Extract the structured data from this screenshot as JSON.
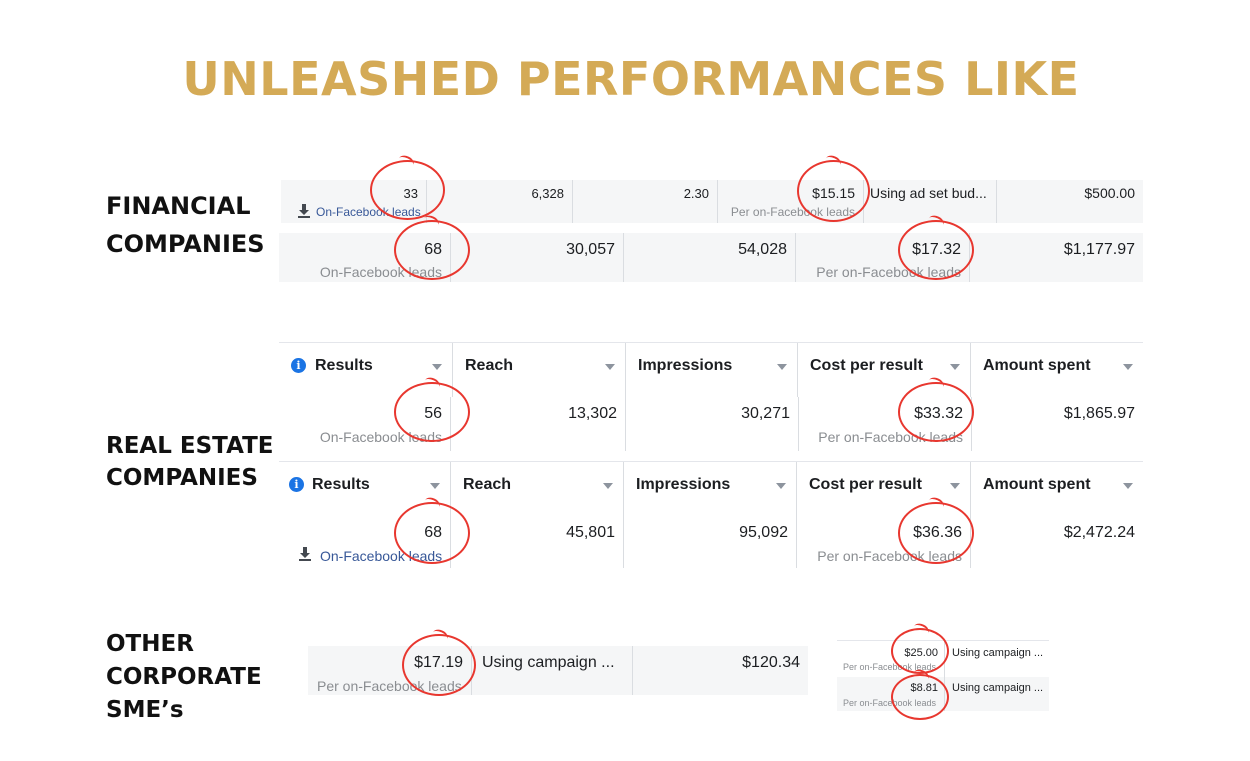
{
  "title": "UNLEASHED PERFORMANCES LIKE",
  "sections": {
    "financial": [
      "FINANCIAL",
      "COMPANIES"
    ],
    "real_estate": [
      "REAL ESTATE",
      "COMPANIES"
    ],
    "other": [
      "OTHER",
      "CORPORATE",
      "SME’s"
    ]
  },
  "leads_label": "On-Facebook leads",
  "per_leads_label": "Per on-Facebook leads",
  "fin_row1": {
    "results": "33",
    "reach": "6,328",
    "frequency": "2.30",
    "cost": "$15.15",
    "budget": "Using ad set bud...",
    "spent": "$500.00"
  },
  "fin_row2": {
    "results": "68",
    "reach": "30,057",
    "impressions": "54,028",
    "cost": "$17.32",
    "spent": "$1,177.97"
  },
  "headers": {
    "results": "Results",
    "reach": "Reach",
    "impressions": "Impressions",
    "cost": "Cost per result",
    "spent": "Amount spent"
  },
  "re_row1": {
    "results": "56",
    "reach": "13,302",
    "impressions": "30,271",
    "cost": "$33.32",
    "spent": "$1,865.97"
  },
  "re_row2": {
    "results": "68",
    "reach": "45,801",
    "impressions": "95,092",
    "cost": "$36.36",
    "spent": "$2,472.24"
  },
  "other_row": {
    "cost": "$17.19",
    "budget": "Using campaign ...",
    "spent": "$120.34"
  },
  "small_rows": [
    {
      "cost": "$25.00",
      "budget": "Using campaign ..."
    },
    {
      "cost": "$8.81",
      "budget": "Using campaign ..."
    }
  ],
  "colors": {
    "title": "#d4aa56",
    "highlight": "#e8372f",
    "link": "#385898",
    "info": "#1b74e4"
  },
  "icons": [
    "info-icon",
    "download-icon",
    "caret-down-icon"
  ]
}
